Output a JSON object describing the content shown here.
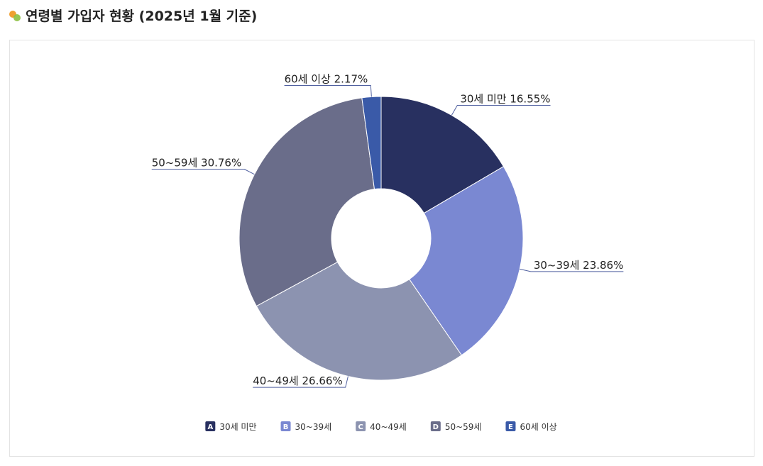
{
  "chart_data": {
    "type": "donut",
    "title": "연령별 가입자 현황 (2025년 1월 기준)",
    "categories": [
      "30세 미만",
      "30~39세",
      "40~49세",
      "50~59세",
      "60세 이상"
    ],
    "values": [
      16.55,
      23.86,
      26.66,
      30.76,
      2.17
    ],
    "value_labels": [
      "30세 미만 16.55%",
      "30~39세 23.86%",
      "40~49세 26.66%",
      "50~59세 30.76%",
      "60세 이상 2.17%"
    ],
    "colors": [
      "#283060",
      "#7a88d2",
      "#8c93b0",
      "#6a6d8a",
      "#3a5aa8"
    ],
    "legend_markers": [
      "A",
      "B",
      "C",
      "D",
      "E"
    ]
  }
}
